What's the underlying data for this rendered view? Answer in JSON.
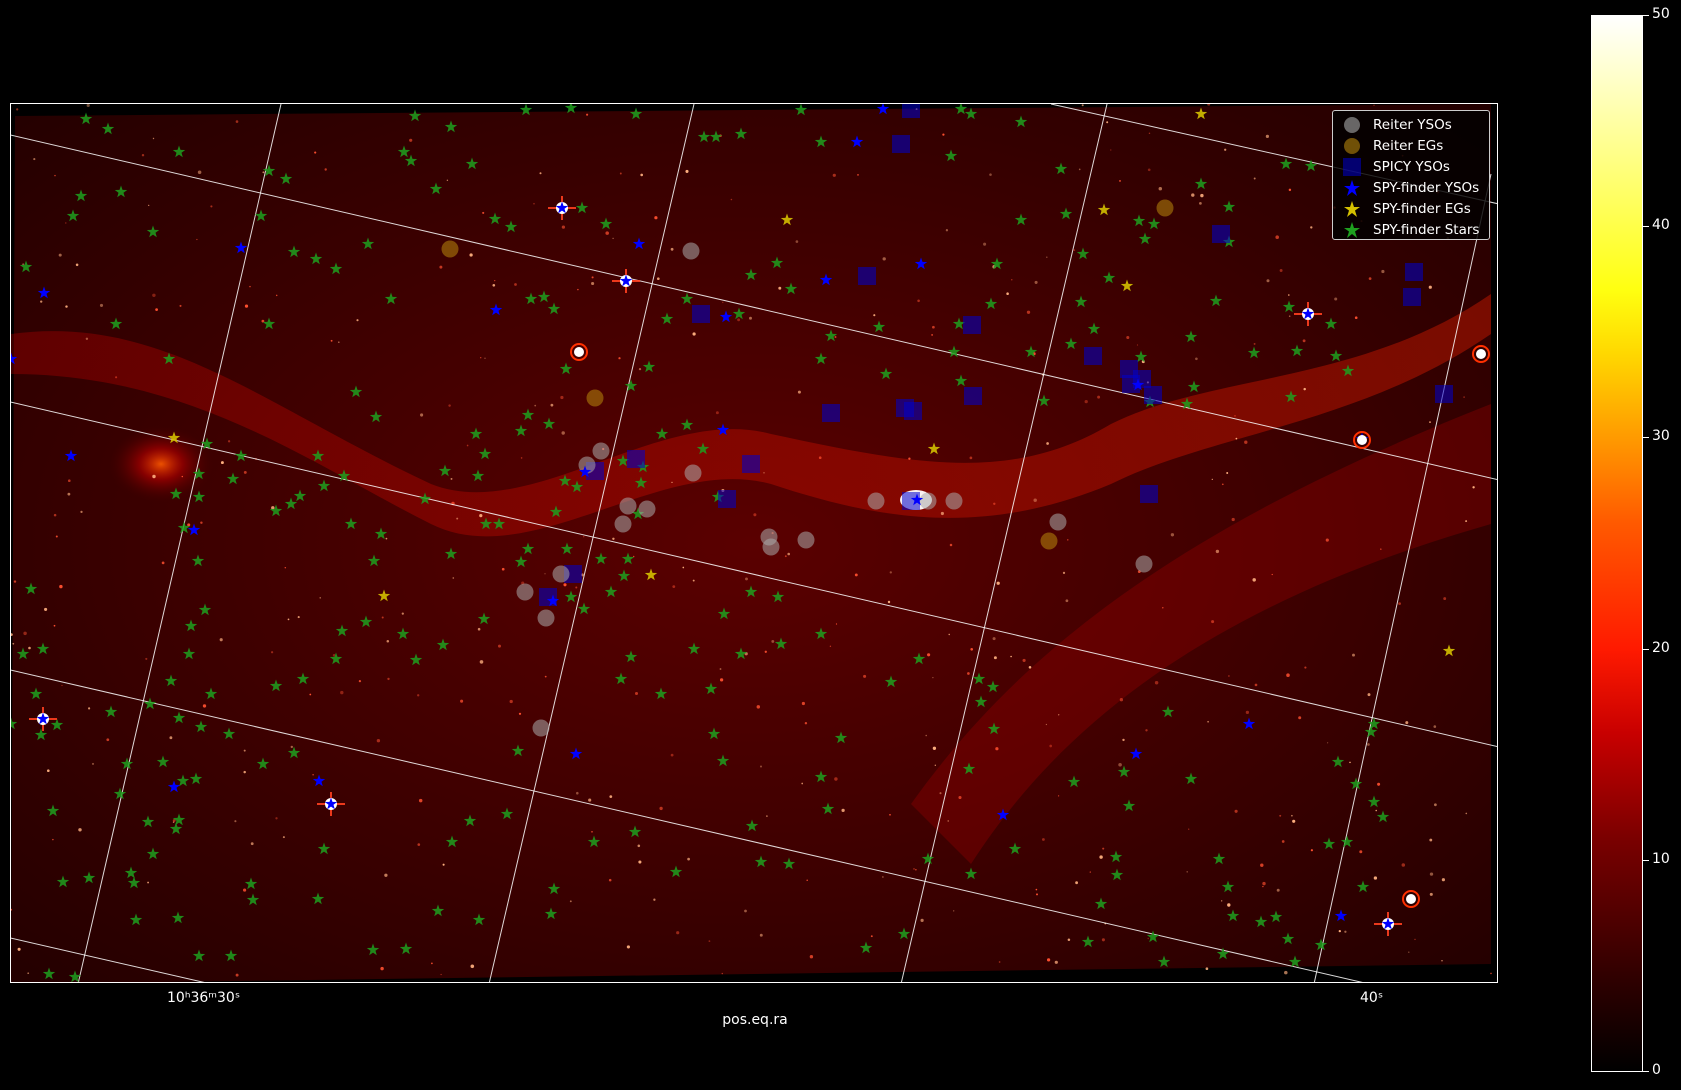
{
  "chart_data": {
    "type": "scatter",
    "xlabel": "pos.eq.ra",
    "x_tick_labels": [
      {
        "text": "10ʰ36ᵐ30ˢ"
      },
      {
        "text": "40ˢ"
      }
    ],
    "legend": {
      "placement": "top-right",
      "entries": [
        {
          "label": "Reiter YSOs",
          "marker": "circle",
          "color": "#aaaaaa"
        },
        {
          "label": "Reiter EGs",
          "marker": "circle",
          "color": "#b8860b"
        },
        {
          "label": "SPICY YSOs",
          "marker": "square",
          "color": "#0000cc"
        },
        {
          "label": "SPY-finder YSOs",
          "marker": "star",
          "color": "#0000ff"
        },
        {
          "label": "SPY-finder EGs",
          "marker": "star",
          "color": "#d4c000"
        },
        {
          "label": "SPY-finder Stars",
          "marker": "star",
          "color": "#1fa01f"
        }
      ]
    },
    "colorbar": {
      "colormap": "hot",
      "range": [
        0,
        50
      ],
      "ticks": [
        "0",
        "10",
        "20",
        "30",
        "40",
        "50"
      ]
    },
    "background_image": "infrared nebula field, hot colormap",
    "grid": true
  }
}
